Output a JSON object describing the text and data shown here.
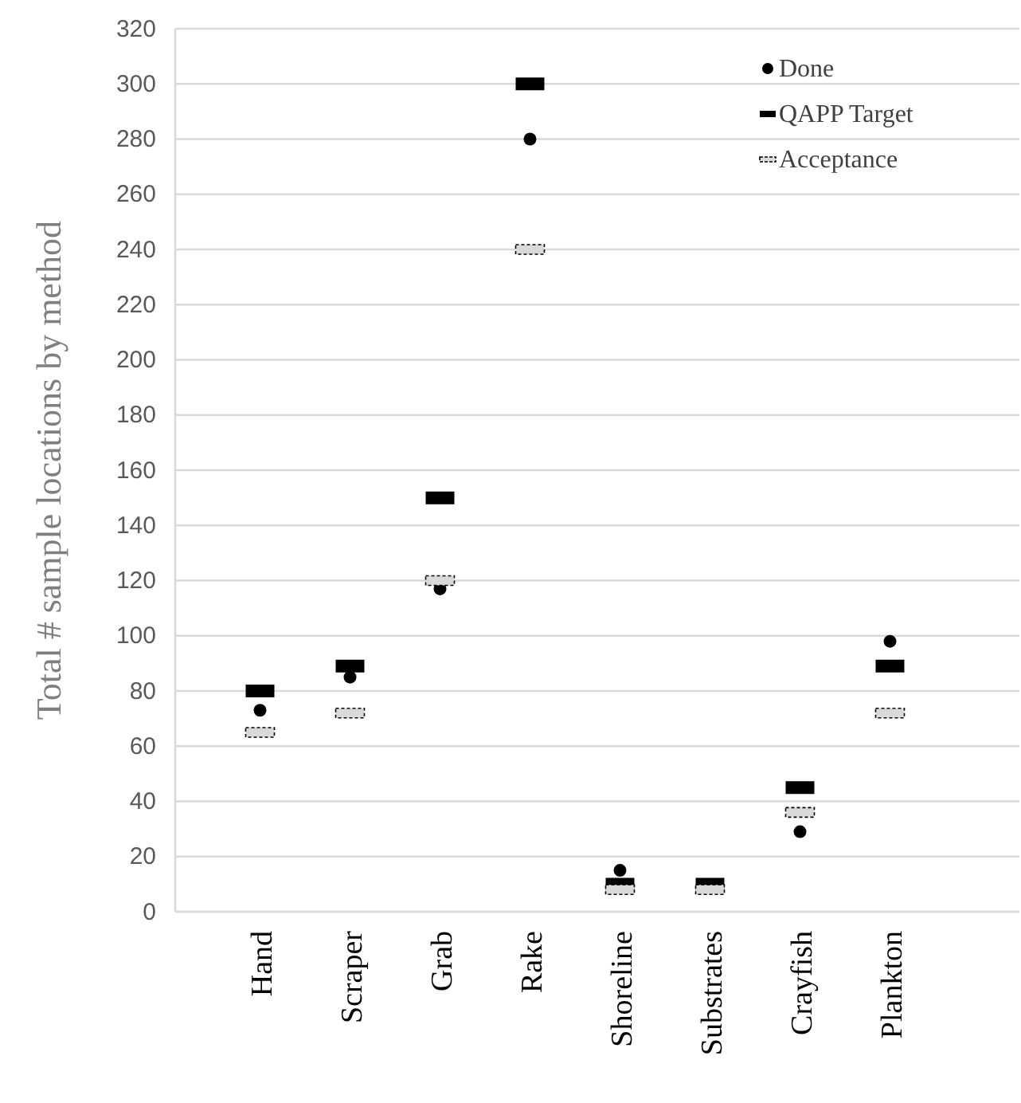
{
  "chart_data": {
    "type": "scatter",
    "ylabel": "Total # sample locations by method",
    "categories": [
      "Hand",
      "Scraper",
      "Grab",
      "Rake",
      "Shoreline",
      "Substrates",
      "Crayfish",
      "Plankton"
    ],
    "series": [
      {
        "name": "Done",
        "color": "#000000",
        "marker": "circle",
        "values": [
          73,
          85,
          117,
          280,
          15,
          null,
          29,
          98
        ]
      },
      {
        "name": "QAPP Target",
        "color": "#000000",
        "marker": "square",
        "values": [
          80,
          89,
          150,
          300,
          10,
          10,
          45,
          89
        ]
      },
      {
        "name": "Acceptance",
        "color": "#d9d9d9",
        "marker": "square",
        "line_style": "dashed",
        "values": [
          65,
          72,
          120,
          240,
          8,
          8,
          36,
          72
        ]
      }
    ],
    "ylim": [
      0,
      320
    ],
    "yticks": [
      0,
      20,
      40,
      60,
      80,
      100,
      120,
      140,
      160,
      180,
      200,
      220,
      240,
      260,
      280,
      300,
      320
    ],
    "grid": "y",
    "legend": "top right"
  }
}
